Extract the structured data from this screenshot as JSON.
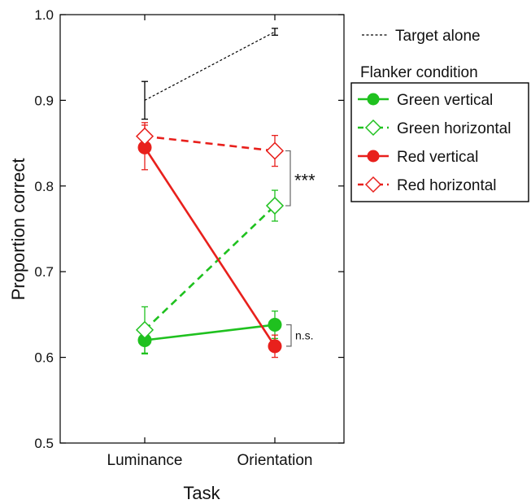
{
  "chart_data": {
    "type": "line",
    "xlabel": "Task",
    "ylabel": "Proportion correct",
    "categories": [
      "Luminance",
      "Orientation"
    ],
    "ylim": [
      0.5,
      1.0
    ],
    "yticks": [
      "0.5",
      "0.6",
      "0.7",
      "0.8",
      "0.9",
      "1.0"
    ],
    "grid": false,
    "legend_position": "right",
    "target_alone": {
      "name": "Target alone",
      "values": [
        0.9,
        0.98
      ],
      "errors": [
        0.022,
        0.004
      ],
      "color": "#000000"
    },
    "legend_title": "Flanker condition",
    "series": [
      {
        "name": "Green vertical",
        "values": [
          0.62,
          0.638
        ],
        "errors": [
          0.016,
          0.016
        ],
        "color": "#1fc11f",
        "marker": "circle",
        "dashed": false
      },
      {
        "name": "Green horizontal",
        "values": [
          0.632,
          0.777
        ],
        "errors": [
          0.027,
          0.018
        ],
        "color": "#1fc11f",
        "marker": "diamond",
        "dashed": true
      },
      {
        "name": "Red vertical",
        "values": [
          0.845,
          0.613
        ],
        "errors": [
          0.026,
          0.013
        ],
        "color": "#e8201c",
        "marker": "circle",
        "dashed": false
      },
      {
        "name": "Red horizontal",
        "values": [
          0.858,
          0.841
        ],
        "errors": [
          0.016,
          0.018
        ],
        "color": "#e8201c",
        "marker": "diamond",
        "dashed": true
      }
    ],
    "annotations": [
      {
        "text": "***",
        "between": [
          0.841,
          0.777
        ]
      },
      {
        "text": "n.s.",
        "between": [
          0.638,
          0.613
        ]
      }
    ]
  }
}
